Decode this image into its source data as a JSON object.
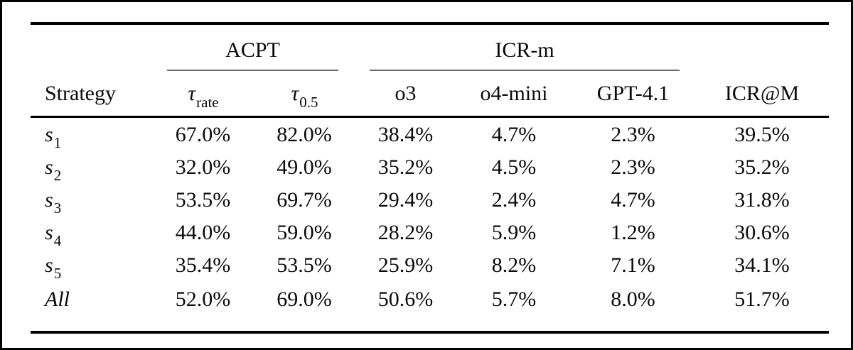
{
  "table": {
    "header": {
      "strategy_label": "Strategy",
      "group_acpt": "ACPT",
      "group_icrm": "ICR-m",
      "col_tau_rate": {
        "base": "τ",
        "sub": "rate"
      },
      "col_tau_05": {
        "base": "τ",
        "sub": "0.5"
      },
      "col_o3": "o3",
      "col_o4mini": "o4-mini",
      "col_gpt41": "GPT-4.1",
      "col_icr_at_m": "ICR@M"
    },
    "rows": [
      {
        "strategy_base": "s",
        "strategy_sub": "1",
        "values": [
          "67.0%",
          "82.0%",
          "38.4%",
          "4.7%",
          "2.3%",
          "39.5%"
        ]
      },
      {
        "strategy_base": "s",
        "strategy_sub": "2",
        "values": [
          "32.0%",
          "49.0%",
          "35.2%",
          "4.5%",
          "2.3%",
          "35.2%"
        ]
      },
      {
        "strategy_base": "s",
        "strategy_sub": "3",
        "values": [
          "53.5%",
          "69.7%",
          "29.4%",
          "2.4%",
          "4.7%",
          "31.8%"
        ]
      },
      {
        "strategy_base": "s",
        "strategy_sub": "4",
        "values": [
          "44.0%",
          "59.0%",
          "28.2%",
          "5.9%",
          "1.2%",
          "30.6%"
        ]
      },
      {
        "strategy_base": "s",
        "strategy_sub": "5",
        "values": [
          "35.4%",
          "53.5%",
          "25.9%",
          "8.2%",
          "7.1%",
          "34.1%"
        ]
      },
      {
        "strategy_base": "All",
        "strategy_sub": "",
        "values": [
          "52.0%",
          "69.0%",
          "50.6%",
          "5.7%",
          "8.0%",
          "51.7%"
        ]
      }
    ]
  }
}
